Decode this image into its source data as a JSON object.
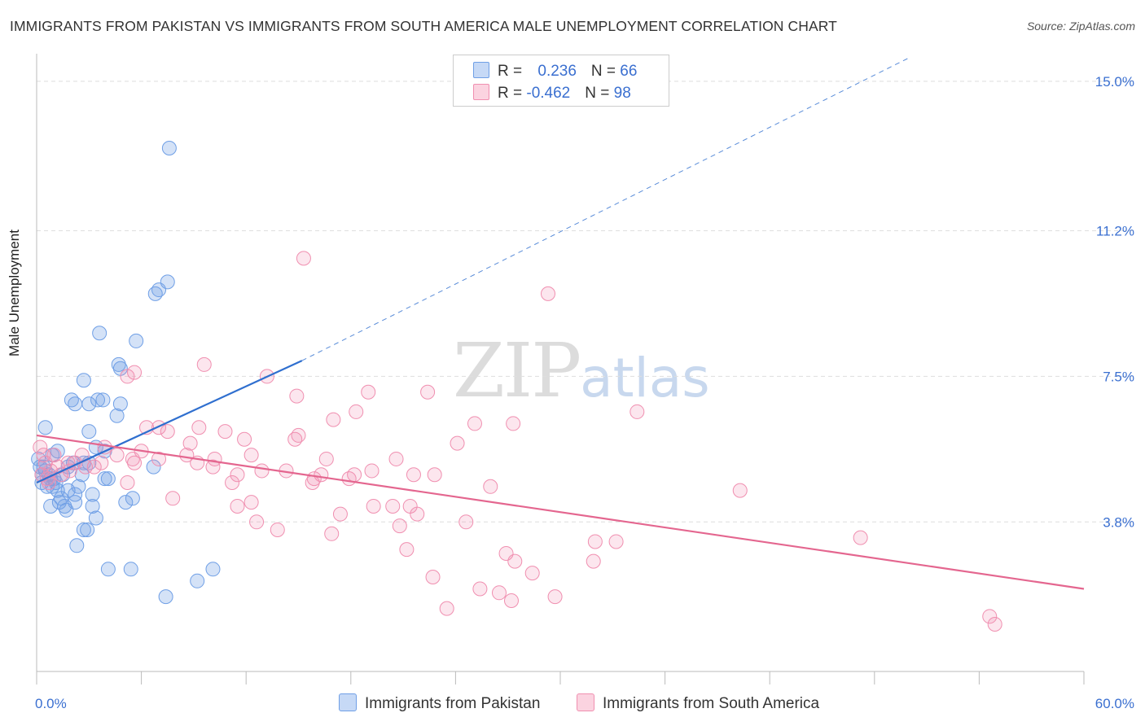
{
  "title": "IMMIGRANTS FROM PAKISTAN VS IMMIGRANTS FROM SOUTH AMERICA MALE UNEMPLOYMENT CORRELATION CHART",
  "source": "Source: ZipAtlas.com",
  "watermark": {
    "zip": "ZIP",
    "atlas": "atlas"
  },
  "legend": {
    "pakistan": {
      "r_label": "R = ",
      "r_value": "0.236",
      "n_label": "N = ",
      "n_value": "66"
    },
    "south_america": {
      "r_label": "R = ",
      "r_value": "-0.462",
      "n_label": "N = ",
      "n_value": "98"
    }
  },
  "colors": {
    "pakistan": "#6f9fe6",
    "pakistan_line": "#2f6fcf",
    "south_america": "#f08fb0",
    "south_america_line": "#e4668f",
    "tick_label": "#3a6fd0"
  },
  "chart_data": {
    "type": "scatter",
    "title": "IMMIGRANTS FROM PAKISTAN VS IMMIGRANTS FROM SOUTH AMERICA MALE UNEMPLOYMENT CORRELATION CHART",
    "xlabel": "",
    "ylabel": "Male Unemployment",
    "xlim": [
      0,
      60
    ],
    "ylim": [
      0,
      15.7
    ],
    "x_tick_labels": [
      "0.0%",
      "60.0%"
    ],
    "y_ticks": [
      3.8,
      7.5,
      11.2,
      15.0
    ],
    "y_tick_labels": [
      "3.8%",
      "7.5%",
      "11.2%",
      "15.0%"
    ],
    "grid": "horizontal dashed",
    "legend_position": "top-center",
    "series": [
      {
        "name": "Immigrants from Pakistan",
        "r": 0.236,
        "n": 66,
        "points": [
          [
            7.6,
            13.3
          ],
          [
            7.5,
            9.9
          ],
          [
            6.8,
            9.6
          ],
          [
            7.0,
            9.7
          ],
          [
            3.6,
            8.6
          ],
          [
            5.7,
            8.4
          ],
          [
            4.7,
            7.8
          ],
          [
            4.8,
            7.7
          ],
          [
            2.7,
            7.4
          ],
          [
            2.0,
            6.9
          ],
          [
            2.2,
            6.8
          ],
          [
            3.0,
            6.8
          ],
          [
            3.5,
            6.9
          ],
          [
            3.8,
            6.9
          ],
          [
            4.8,
            6.8
          ],
          [
            4.6,
            6.5
          ],
          [
            0.5,
            6.2
          ],
          [
            3.0,
            6.1
          ],
          [
            1.2,
            5.6
          ],
          [
            2.1,
            5.3
          ],
          [
            3.4,
            5.7
          ],
          [
            3.9,
            5.6
          ],
          [
            0.2,
            5.2
          ],
          [
            0.5,
            5.1
          ],
          [
            0.8,
            4.9
          ],
          [
            1.0,
            4.9
          ],
          [
            1.5,
            5.0
          ],
          [
            1.8,
            5.2
          ],
          [
            2.7,
            5.3
          ],
          [
            6.7,
            5.2
          ],
          [
            0.3,
            4.8
          ],
          [
            0.6,
            4.7
          ],
          [
            0.9,
            4.7
          ],
          [
            1.2,
            4.6
          ],
          [
            1.8,
            4.6
          ],
          [
            2.4,
            4.7
          ],
          [
            2.2,
            4.5
          ],
          [
            3.2,
            4.5
          ],
          [
            3.9,
            4.9
          ],
          [
            4.1,
            4.9
          ],
          [
            5.5,
            4.4
          ],
          [
            5.1,
            4.3
          ],
          [
            1.3,
            4.3
          ],
          [
            0.8,
            4.2
          ],
          [
            1.6,
            4.2
          ],
          [
            1.7,
            4.1
          ],
          [
            2.2,
            4.3
          ],
          [
            3.2,
            4.2
          ],
          [
            3.4,
            3.9
          ],
          [
            2.7,
            3.6
          ],
          [
            2.9,
            3.6
          ],
          [
            2.3,
            3.2
          ],
          [
            4.1,
            2.6
          ],
          [
            5.4,
            2.6
          ],
          [
            7.4,
            1.9
          ],
          [
            9.2,
            2.3
          ],
          [
            10.1,
            2.6
          ],
          [
            0.1,
            5.4
          ],
          [
            0.3,
            5.0
          ],
          [
            0.4,
            5.2
          ],
          [
            0.7,
            5.0
          ],
          [
            1.1,
            4.8
          ],
          [
            1.4,
            4.4
          ],
          [
            2.6,
            5.0
          ],
          [
            3.0,
            5.3
          ],
          [
            0.9,
            5.5
          ]
        ],
        "trend": {
          "x0": 0.0,
          "y0": 4.8,
          "x1": 15.2,
          "y1": 7.9,
          "extrapolate_to": [
            50.0,
            15.6
          ]
        }
      },
      {
        "name": "Immigrants from South America",
        "r": -0.462,
        "n": 98,
        "points": [
          [
            15.3,
            10.5
          ],
          [
            29.3,
            9.6
          ],
          [
            9.6,
            7.8
          ],
          [
            5.2,
            7.5
          ],
          [
            5.6,
            7.6
          ],
          [
            13.2,
            7.5
          ],
          [
            14.9,
            7.0
          ],
          [
            19.0,
            7.1
          ],
          [
            22.4,
            7.1
          ],
          [
            17.0,
            6.4
          ],
          [
            18.3,
            6.6
          ],
          [
            25.1,
            6.3
          ],
          [
            27.3,
            6.3
          ],
          [
            34.4,
            6.6
          ],
          [
            6.3,
            6.2
          ],
          [
            7.0,
            6.2
          ],
          [
            7.5,
            6.1
          ],
          [
            9.3,
            6.2
          ],
          [
            10.8,
            6.1
          ],
          [
            11.9,
            5.9
          ],
          [
            8.8,
            5.8
          ],
          [
            15.0,
            6.0
          ],
          [
            14.8,
            5.9
          ],
          [
            6.0,
            5.6
          ],
          [
            7.0,
            5.4
          ],
          [
            8.6,
            5.5
          ],
          [
            10.2,
            5.4
          ],
          [
            12.3,
            5.5
          ],
          [
            16.6,
            5.4
          ],
          [
            20.6,
            5.4
          ],
          [
            24.1,
            5.8
          ],
          [
            1.0,
            5.5
          ],
          [
            2.6,
            5.5
          ],
          [
            3.9,
            5.7
          ],
          [
            4.6,
            5.5
          ],
          [
            5.5,
            5.4
          ],
          [
            1.8,
            5.3
          ],
          [
            2.8,
            5.2
          ],
          [
            3.3,
            5.2
          ],
          [
            3.7,
            5.3
          ],
          [
            5.6,
            5.3
          ],
          [
            9.2,
            5.3
          ],
          [
            10.1,
            5.2
          ],
          [
            12.9,
            5.1
          ],
          [
            14.3,
            5.1
          ],
          [
            15.8,
            4.8
          ],
          [
            16.3,
            5.0
          ],
          [
            18.2,
            5.0
          ],
          [
            19.2,
            5.1
          ],
          [
            11.5,
            5.0
          ],
          [
            11.2,
            4.8
          ],
          [
            15.9,
            4.9
          ],
          [
            17.9,
            4.9
          ],
          [
            21.6,
            5.0
          ],
          [
            22.8,
            5.0
          ],
          [
            26.0,
            4.7
          ],
          [
            40.3,
            4.6
          ],
          [
            0.5,
            5.3
          ],
          [
            0.8,
            5.1
          ],
          [
            1.4,
            5.0
          ],
          [
            1.9,
            5.1
          ],
          [
            2.2,
            5.3
          ],
          [
            0.2,
            5.7
          ],
          [
            0.4,
            5.5
          ],
          [
            0.3,
            5.0
          ],
          [
            0.7,
            4.8
          ],
          [
            1.2,
            5.2
          ],
          [
            5.2,
            4.8
          ],
          [
            7.8,
            4.4
          ],
          [
            11.5,
            4.2
          ],
          [
            12.3,
            4.3
          ],
          [
            19.3,
            4.2
          ],
          [
            20.4,
            4.2
          ],
          [
            21.4,
            4.2
          ],
          [
            21.8,
            4.0
          ],
          [
            17.4,
            4.0
          ],
          [
            12.6,
            3.8
          ],
          [
            13.8,
            3.6
          ],
          [
            16.9,
            3.5
          ],
          [
            20.8,
            3.7
          ],
          [
            24.6,
            3.8
          ],
          [
            32.0,
            3.3
          ],
          [
            33.2,
            3.3
          ],
          [
            47.2,
            3.4
          ],
          [
            21.2,
            3.1
          ],
          [
            26.9,
            3.0
          ],
          [
            27.4,
            2.8
          ],
          [
            28.4,
            2.5
          ],
          [
            31.9,
            2.8
          ],
          [
            22.7,
            2.4
          ],
          [
            25.4,
            2.1
          ],
          [
            26.5,
            2.0
          ],
          [
            27.2,
            1.8
          ],
          [
            29.7,
            1.9
          ],
          [
            23.5,
            1.6
          ],
          [
            54.6,
            1.4
          ],
          [
            54.9,
            1.2
          ],
          [
            0.6,
            4.9
          ]
        ],
        "trend": {
          "x0": 0.0,
          "y0": 6.0,
          "x1": 60.0,
          "y1": 2.1
        }
      }
    ]
  }
}
